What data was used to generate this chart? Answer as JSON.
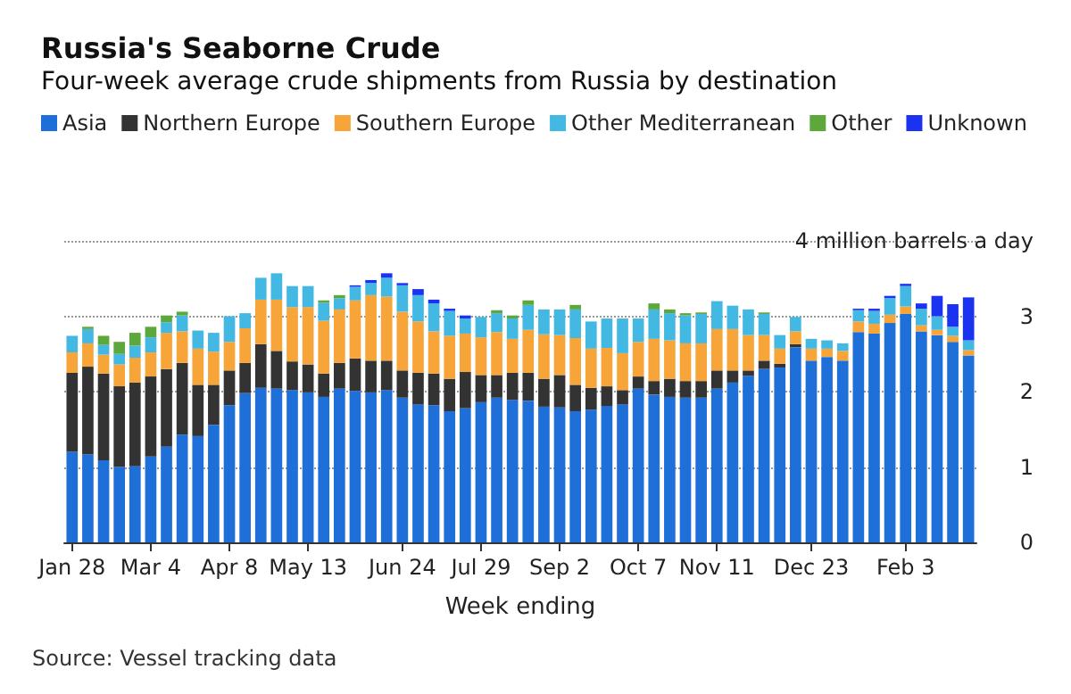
{
  "chart_data": {
    "type": "bar",
    "title": "Russia's Seaborne Crude",
    "subtitle": "Four-week average crude shipments from Russia by destination",
    "xlabel": "Week ending",
    "annotations": [
      "Source: Vessel tracking data"
    ],
    "categories": [
      "Jan 28",
      null,
      null,
      null,
      null,
      "Mar 4",
      null,
      null,
      null,
      null,
      "Apr 8",
      null,
      null,
      null,
      null,
      "May 13",
      null,
      null,
      null,
      null,
      null,
      "Jun 24",
      null,
      null,
      null,
      null,
      "Jul 29",
      null,
      null,
      null,
      null,
      "Sep 2",
      null,
      null,
      null,
      null,
      "Oct 7",
      null,
      null,
      null,
      null,
      "Nov 11",
      null,
      null,
      null,
      null,
      null,
      "Dec 23",
      null,
      null,
      null,
      null,
      null,
      "Feb 3",
      null,
      null,
      null,
      null
    ],
    "stacked": true,
    "legend": "top left",
    "grid": "y",
    "ylim": [
      0,
      4
    ],
    "yticks": [
      0,
      1,
      2,
      3,
      {
        "value": 4,
        "label": "4 million barrels a day"
      }
    ],
    "series": [
      {
        "name": "Asia",
        "color": "#1f6fd9",
        "values": [
          1.2,
          1.17,
          1.09,
          1.0,
          1.01,
          1.14,
          1.27,
          1.43,
          1.41,
          1.56,
          1.82,
          1.98,
          2.05,
          2.04,
          2.02,
          1.99,
          1.93,
          2.04,
          2.01,
          1.99,
          2.02,
          1.92,
          1.83,
          1.82,
          1.74,
          1.78,
          1.86,
          1.92,
          1.89,
          1.88,
          1.8,
          1.79,
          1.74,
          1.76,
          1.81,
          1.83,
          2.04,
          1.96,
          1.93,
          1.92,
          1.92,
          2.04,
          2.12,
          2.21,
          2.3,
          2.32,
          2.59,
          2.41,
          2.46,
          2.41,
          2.79,
          2.77,
          2.91,
          3.03,
          2.8,
          2.75,
          2.66,
          2.48
        ]
      },
      {
        "name": "Northern Europe",
        "color": "#333333",
        "values": [
          1.05,
          1.16,
          1.15,
          1.07,
          1.11,
          1.06,
          1.03,
          0.95,
          0.68,
          0.53,
          0.46,
          0.4,
          0.58,
          0.5,
          0.38,
          0.37,
          0.31,
          0.34,
          0.43,
          0.42,
          0.39,
          0.36,
          0.42,
          0.42,
          0.43,
          0.48,
          0.36,
          0.3,
          0.36,
          0.37,
          0.37,
          0.43,
          0.35,
          0.29,
          0.26,
          0.19,
          0.16,
          0.18,
          0.24,
          0.22,
          0.22,
          0.24,
          0.16,
          0.07,
          0.11,
          0.05,
          0.04,
          0,
          0,
          0,
          0,
          0,
          0,
          0,
          0,
          0,
          0,
          0
        ]
      },
      {
        "name": "Southern Europe",
        "color": "#f7a538",
        "values": [
          0.27,
          0.31,
          0.25,
          0.29,
          0.33,
          0.32,
          0.48,
          0.42,
          0.48,
          0.44,
          0.38,
          0.46,
          0.59,
          0.68,
          0.72,
          0.76,
          0.7,
          0.71,
          0.77,
          0.87,
          0.85,
          0.78,
          0.68,
          0.56,
          0.57,
          0.51,
          0.5,
          0.57,
          0.45,
          0.57,
          0.59,
          0.53,
          0.62,
          0.52,
          0.51,
          0.49,
          0.46,
          0.56,
          0.51,
          0.5,
          0.5,
          0.55,
          0.55,
          0.47,
          0.34,
          0.2,
          0.17,
          0.16,
          0.11,
          0.13,
          0.14,
          0.13,
          0.11,
          0.1,
          0.08,
          0.07,
          0.08,
          0.07
        ]
      },
      {
        "name": "Other Mediterranean",
        "color": "#42b8e3",
        "values": [
          0.22,
          0.19,
          0.13,
          0.14,
          0.16,
          0.2,
          0.14,
          0.21,
          0.24,
          0.25,
          0.34,
          0.2,
          0.29,
          0.35,
          0.28,
          0.28,
          0.24,
          0.15,
          0.18,
          0.16,
          0.25,
          0.35,
          0.35,
          0.37,
          0.33,
          0.2,
          0.27,
          0.25,
          0.27,
          0.33,
          0.33,
          0.34,
          0.38,
          0.36,
          0.39,
          0.46,
          0.31,
          0.39,
          0.36,
          0.37,
          0.39,
          0.37,
          0.31,
          0.34,
          0.28,
          0.18,
          0.19,
          0.13,
          0.11,
          0.1,
          0.15,
          0.17,
          0.22,
          0.27,
          0.22,
          0.18,
          0.12,
          0.13
        ]
      },
      {
        "name": "Other",
        "color": "#5da83a",
        "values": [
          0,
          0.03,
          0.12,
          0.16,
          0.17,
          0.14,
          0.09,
          0.05,
          0,
          0,
          0,
          0,
          0,
          0,
          0,
          0,
          0.03,
          0.04,
          0,
          0,
          0,
          0,
          0,
          0,
          0,
          0,
          0,
          0.04,
          0.04,
          0.06,
          0,
          0,
          0.06,
          0,
          0,
          0,
          0,
          0.08,
          0.05,
          0.03,
          0.02,
          0,
          0,
          0,
          0.02,
          0,
          0,
          0,
          0,
          0,
          0,
          0,
          0,
          0,
          0,
          0,
          0,
          0
        ]
      },
      {
        "name": "Unknown",
        "color": "#1b33f0",
        "values": [
          0,
          0,
          0,
          0,
          0,
          0,
          0,
          0,
          0,
          0,
          0,
          0,
          0,
          0,
          0,
          0,
          0,
          0,
          0.02,
          0.04,
          0.06,
          0.03,
          0.08,
          0.05,
          0.03,
          0.04,
          0,
          0,
          0,
          0,
          0,
          0,
          0,
          0,
          0,
          0,
          0,
          0,
          0,
          0,
          0,
          0,
          0,
          0,
          0,
          0,
          0,
          0,
          0,
          0,
          0.02,
          0.03,
          0.03,
          0.03,
          0.07,
          0.27,
          0.3,
          0.57
        ]
      }
    ]
  }
}
